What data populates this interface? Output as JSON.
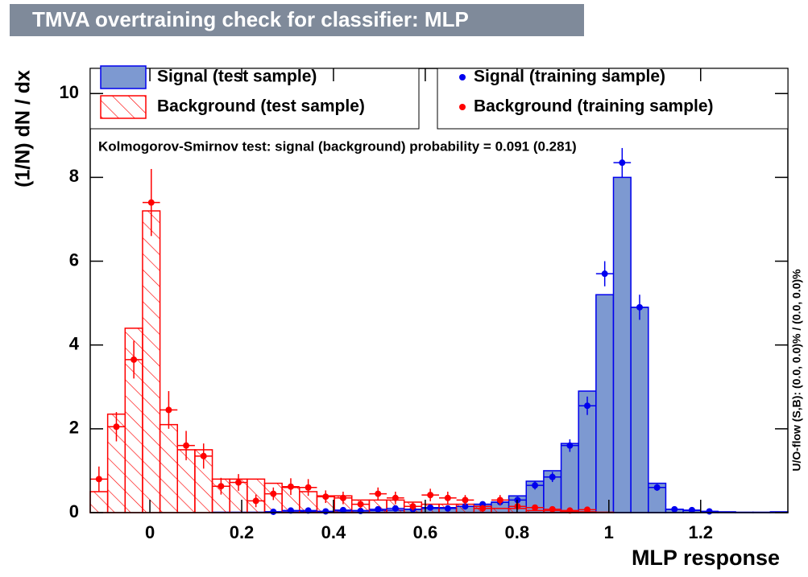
{
  "chart_data": {
    "type": "histogram",
    "title": "TMVA overtraining check for classifier: MLP",
    "x_label": "MLP response",
    "y_label": "(1/N) dN / dx",
    "annotation": "Kolmogorov-Smirnov test: signal (background) probability = 0.091 (0.281)",
    "side_note": "U/O-flow (S,B): (0.0, 0.0)% / (0.0, 0.0)%",
    "xlim": [
      -0.13,
      1.39
    ],
    "ylim": [
      0,
      10.6
    ],
    "xticks": [
      0,
      0.2,
      0.4,
      0.6,
      0.8,
      1,
      1.2
    ],
    "yticks": [
      0,
      2,
      4,
      6,
      8,
      10
    ],
    "bins": [
      -0.13,
      -0.092,
      -0.054,
      -0.016,
      0.022,
      0.06,
      0.098,
      0.136,
      0.174,
      0.212,
      0.25,
      0.288,
      0.326,
      0.364,
      0.402,
      0.44,
      0.478,
      0.516,
      0.554,
      0.592,
      0.63,
      0.668,
      0.706,
      0.744,
      0.782,
      0.82,
      0.858,
      0.896,
      0.934,
      0.972,
      1.01,
      1.048,
      1.086,
      1.124,
      1.162,
      1.2,
      1.238,
      1.276,
      1.314,
      1.352,
      1.39
    ],
    "series": [
      {
        "name": "Signal (test sample)",
        "color": "#0000ee",
        "fill": "#7d99d1",
        "style": "filled",
        "values": [
          0,
          0,
          0,
          0,
          0,
          0,
          0,
          0.01,
          0.01,
          0.01,
          0.02,
          0.02,
          0.03,
          0.03,
          0.04,
          0.05,
          0.05,
          0.06,
          0.08,
          0.1,
          0.12,
          0.15,
          0.2,
          0.25,
          0.4,
          0.75,
          1.0,
          1.65,
          2.9,
          5.2,
          8.0,
          4.9,
          0.7,
          0.08,
          0.05,
          0.03,
          0.02,
          0.01,
          0.01,
          0.02
        ]
      },
      {
        "name": "Background (test sample)",
        "color": "#ff0000",
        "style": "hatched",
        "values": [
          0.5,
          2.35,
          4.4,
          7.2,
          2.1,
          1.5,
          1.5,
          0.8,
          0.8,
          0.8,
          0.7,
          0.6,
          0.5,
          0.4,
          0.4,
          0.3,
          0.3,
          0.3,
          0.25,
          0.2,
          0.2,
          0.2,
          0.15,
          0.1,
          0.1,
          0.05,
          0.05,
          0.03,
          0.02,
          0.01,
          0,
          0,
          0,
          0,
          0,
          0,
          0,
          0,
          0,
          0
        ]
      },
      {
        "name": "Signal (training sample)",
        "color": "#0000ee",
        "style": "points",
        "values": [
          null,
          null,
          null,
          null,
          null,
          null,
          null,
          null,
          null,
          null,
          0.02,
          0.05,
          0.05,
          0.03,
          0.06,
          0.04,
          0.08,
          0.1,
          0.08,
          0.12,
          0.1,
          0.15,
          0.2,
          0.25,
          0.3,
          0.65,
          0.85,
          1.6,
          2.55,
          5.7,
          8.35,
          4.9,
          0.6,
          0.08,
          0.06,
          0.03,
          null,
          null,
          null,
          null
        ],
        "errors": [
          null,
          null,
          null,
          null,
          null,
          null,
          null,
          null,
          null,
          null,
          0.02,
          0.03,
          0.03,
          0.02,
          0.03,
          0.03,
          0.04,
          0.05,
          0.04,
          0.05,
          0.05,
          0.06,
          0.07,
          0.08,
          0.08,
          0.1,
          0.12,
          0.15,
          0.22,
          0.3,
          0.35,
          0.3,
          0.08,
          0.03,
          0.03,
          0.02,
          null,
          null,
          null,
          null
        ]
      },
      {
        "name": "Background (training sample)",
        "color": "#ff0000",
        "style": "points",
        "values": [
          0.8,
          2.05,
          3.65,
          7.4,
          2.45,
          1.6,
          1.35,
          0.63,
          0.72,
          0.28,
          0.45,
          0.62,
          0.6,
          0.38,
          0.35,
          0.2,
          0.45,
          0.35,
          0.15,
          0.42,
          0.35,
          0.3,
          0.1,
          0.3,
          0.15,
          0.12,
          0.08,
          0.05,
          0.07,
          null,
          null,
          null,
          null,
          null,
          null,
          null,
          null,
          null,
          null,
          null
        ],
        "errors": [
          0.3,
          0.35,
          0.45,
          0.8,
          0.45,
          0.35,
          0.3,
          0.2,
          0.2,
          0.15,
          0.15,
          0.2,
          0.2,
          0.15,
          0.15,
          0.1,
          0.15,
          0.15,
          0.1,
          0.15,
          0.15,
          0.12,
          0.08,
          0.12,
          0.08,
          0.07,
          0.05,
          0.04,
          0.05,
          null,
          null,
          null,
          null,
          null,
          null,
          null,
          null,
          null,
          null,
          null
        ]
      }
    ]
  }
}
